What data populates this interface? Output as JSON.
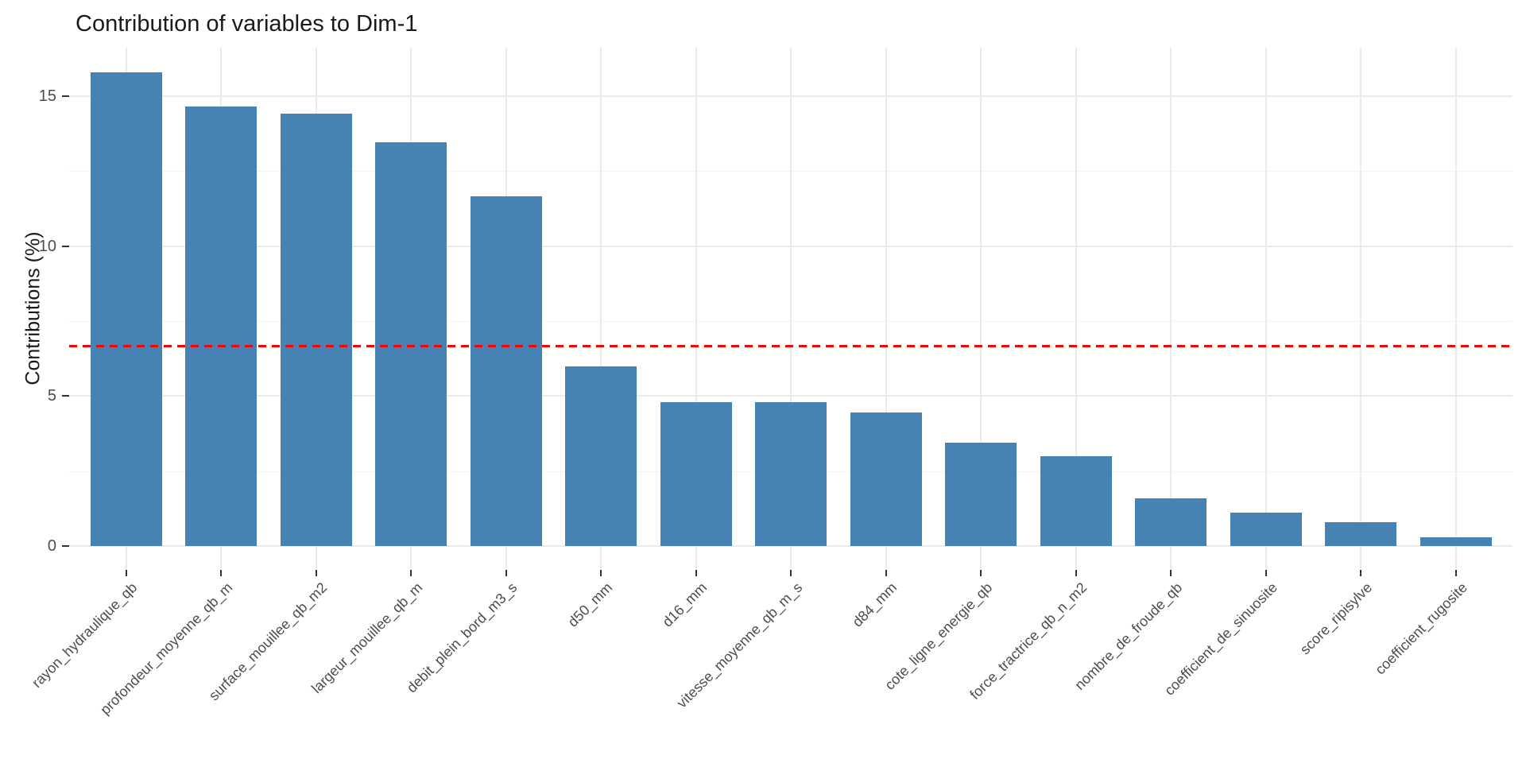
{
  "title": "Contribution of variables to Dim-1",
  "y_axis_title": "Contributions (%)",
  "chart_data": {
    "type": "bar",
    "title": "Contribution of variables to Dim-1",
    "xlabel": "",
    "ylabel": "Contributions (%)",
    "categories": [
      "rayon_hydraulique_qb",
      "profondeur_moyenne_qb_m",
      "surface_mouillee_qb_m2",
      "largeur_mouillee_qb_m",
      "debit_plein_bord_m3_s",
      "d50_mm",
      "d16_mm",
      "vitesse_moyenne_qb_m_s",
      "d84_mm",
      "cote_ligne_energie_qb",
      "force_tractrice_qb_n_m2",
      "nombre_de_froude_qb",
      "coefficient_de_sinuosite",
      "score_ripisylve",
      "coefficient_rugosite"
    ],
    "values": [
      15.8,
      14.65,
      14.4,
      13.45,
      11.65,
      6.0,
      4.8,
      4.8,
      4.45,
      3.45,
      3.0,
      1.6,
      1.1,
      0.8,
      0.3
    ],
    "y_ticks": [
      0,
      5,
      10,
      15
    ],
    "y_minor_ticks": [
      2.5,
      7.5,
      12.5
    ],
    "ylim": [
      0,
      16.5
    ],
    "x_label_rotation": 45,
    "grid": true,
    "legend_position": "none",
    "reference_line": {
      "value": 6.67,
      "style": "dashed",
      "color": "#FF0000"
    },
    "bar_color": "#4682B4"
  },
  "colors": {
    "bar": "#4682B4",
    "reference_line": "#FF0000",
    "grid_major": "#EBEBEB",
    "grid_minor": "#F4F4F4",
    "tick_mark": "#333333",
    "axis_text": "#4D4D4D",
    "title_text": "#1A1A1A",
    "background": "#FFFFFF"
  }
}
